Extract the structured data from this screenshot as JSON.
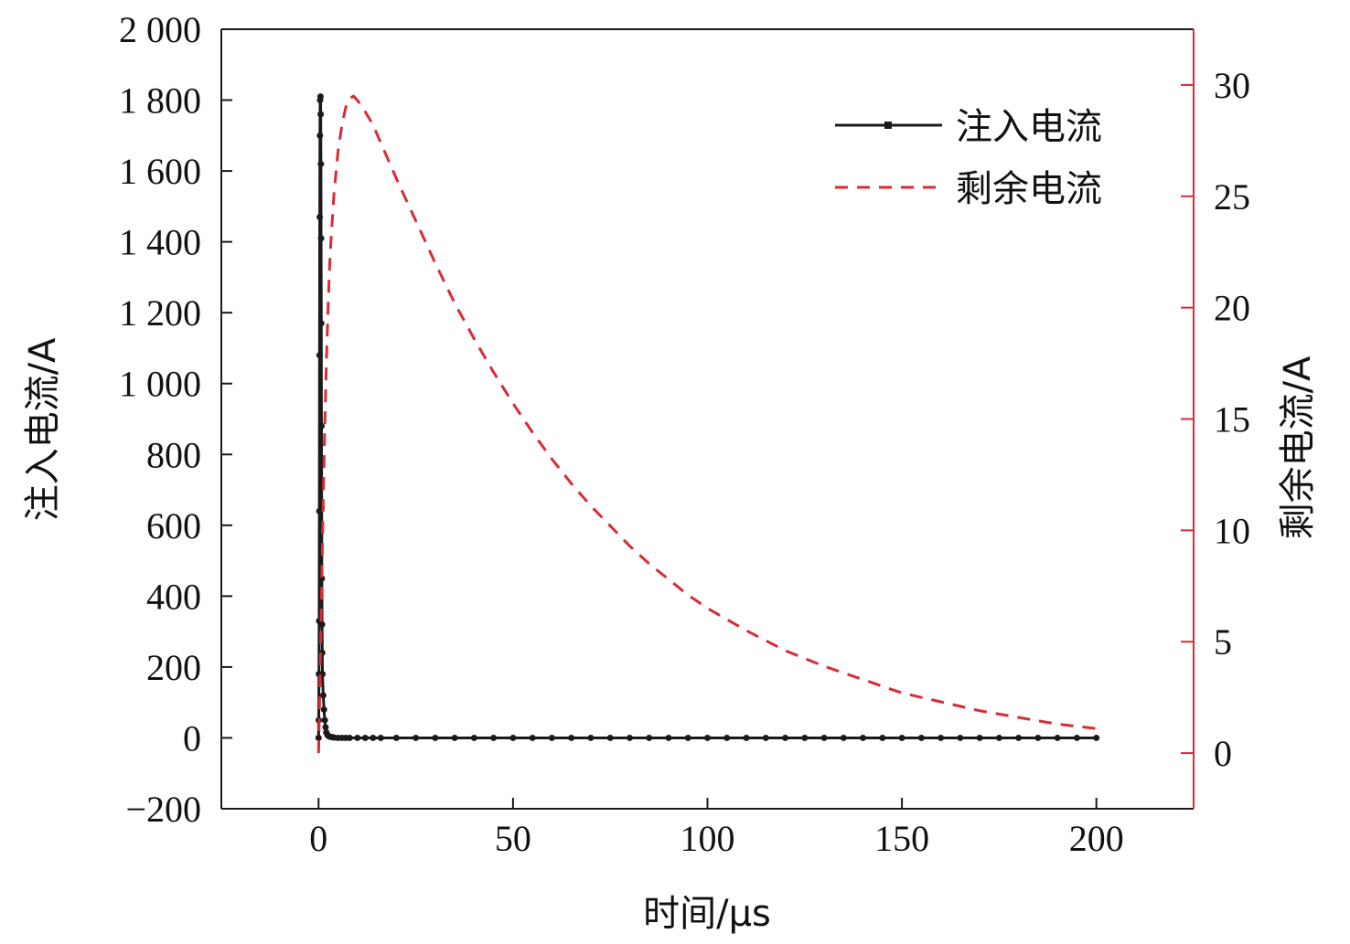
{
  "chart_data": {
    "type": "line",
    "xlabel": "时间/μs",
    "ylabel_left": "注入电流/A",
    "ylabel_right": "剩余电流/A",
    "xlim": [
      -25,
      225
    ],
    "ylim_left": [
      -200,
      2000
    ],
    "ylim_right": [
      -2.5,
      32.5
    ],
    "x_ticks": [
      0,
      50,
      100,
      150,
      200
    ],
    "x_tick_labels": [
      "0",
      "50",
      "100",
      "150",
      "200"
    ],
    "y_left_ticks": [
      -200,
      0,
      200,
      400,
      600,
      800,
      1000,
      1200,
      1400,
      1600,
      1800,
      2000
    ],
    "y_left_tick_labels": [
      "−200",
      "0",
      "200",
      "400",
      "600",
      "800",
      "1 000",
      "1 200",
      "1 400",
      "1 600",
      "1 800",
      "2 000"
    ],
    "y_right_ticks": [
      0,
      5,
      10,
      15,
      20,
      25,
      30
    ],
    "y_right_tick_labels": [
      "0",
      "5",
      "10",
      "15",
      "20",
      "25",
      "30"
    ],
    "legend_position": "top-right",
    "grid": false,
    "series": [
      {
        "name": "注入电流",
        "axis": "left",
        "color": "#1a1a1a",
        "style": "solid-with-markers",
        "x": [
          0,
          0.05,
          0.1,
          0.15,
          0.2,
          0.25,
          0.3,
          0.35,
          0.4,
          0.5,
          0.55,
          0.6,
          0.65,
          0.7,
          0.75,
          0.8,
          0.85,
          0.9,
          0.95,
          1.0,
          1.2,
          1.4,
          1.6,
          1.8,
          2.0,
          2.3,
          2.6,
          3.0,
          3.5,
          4.0,
          5,
          6,
          7,
          8,
          10,
          12,
          14,
          16,
          20,
          25,
          30,
          35,
          40,
          45,
          50,
          55,
          60,
          65,
          70,
          75,
          80,
          85,
          90,
          95,
          100,
          105,
          110,
          115,
          120,
          125,
          130,
          135,
          140,
          145,
          150,
          155,
          160,
          165,
          170,
          175,
          180,
          185,
          190,
          195,
          200
        ],
        "y": [
          0,
          50,
          180,
          330,
          640,
          1080,
          1470,
          1700,
          1800,
          1810,
          1760,
          1620,
          1410,
          1170,
          880,
          650,
          450,
          320,
          240,
          180,
          120,
          80,
          50,
          30,
          15,
          8,
          5,
          3,
          2,
          1,
          0,
          0,
          0,
          0,
          0,
          0,
          0,
          0,
          0,
          0,
          0,
          0,
          0,
          0,
          0,
          0,
          0,
          0,
          0,
          0,
          0,
          0,
          0,
          0,
          0,
          0,
          0,
          0,
          0,
          0,
          0,
          0,
          0,
          0,
          0,
          0,
          0,
          0,
          0,
          0,
          0,
          0,
          0,
          0,
          0
        ]
      },
      {
        "name": "剩余电流",
        "axis": "right",
        "color": "#d92b35",
        "style": "dashed",
        "x": [
          0,
          0.5,
          1,
          1.5,
          2,
          2.5,
          3,
          4,
          5,
          6,
          7,
          8,
          9,
          10,
          11,
          12,
          14,
          16,
          18,
          20,
          25,
          30,
          35,
          40,
          45,
          50,
          55,
          60,
          65,
          70,
          75,
          80,
          85,
          90,
          95,
          100,
          110,
          120,
          130,
          140,
          150,
          160,
          170,
          180,
          190,
          200
        ],
        "y": [
          0,
          4.5,
          9.5,
          14,
          17.5,
          20.3,
          22.5,
          25.2,
          27,
          28.2,
          29,
          29.4,
          29.5,
          29.3,
          29.1,
          28.8,
          28.2,
          27.4,
          26.6,
          25.8,
          23.9,
          22,
          20.2,
          18.6,
          17.1,
          15.7,
          14.4,
          13.2,
          12.1,
          11.1,
          10.2,
          9.3,
          8.5,
          7.8,
          7.1,
          6.5,
          5.5,
          4.6,
          3.9,
          3.3,
          2.7,
          2.3,
          1.9,
          1.6,
          1.3,
          1.1
        ]
      }
    ]
  }
}
